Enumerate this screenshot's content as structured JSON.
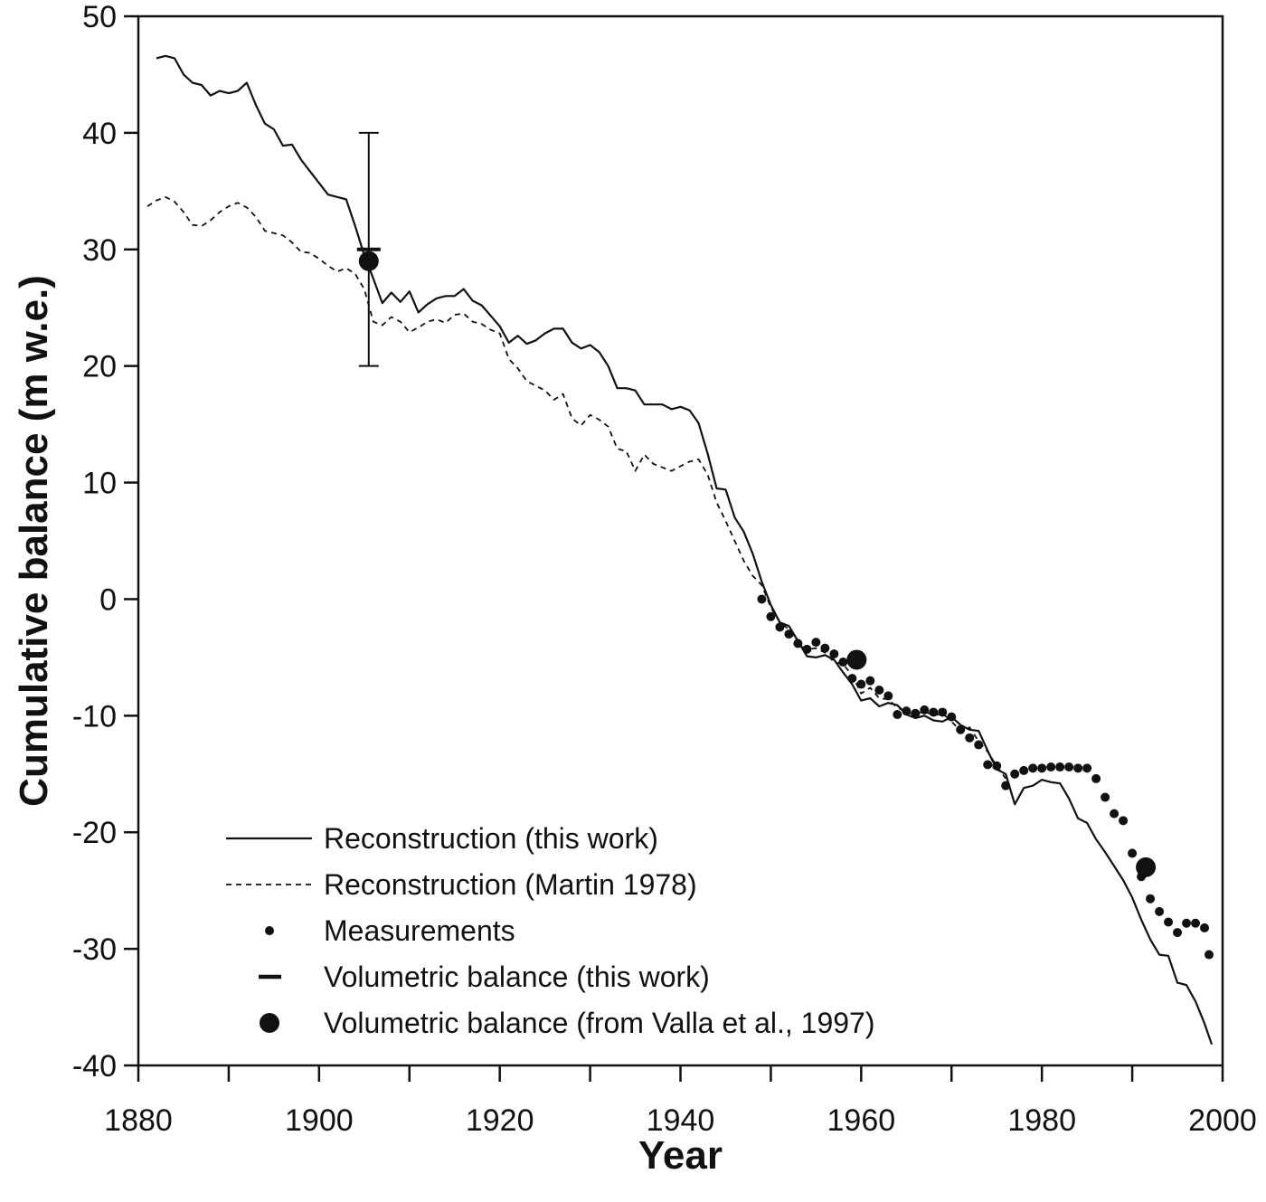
{
  "chart_data": {
    "type": "line",
    "title": "",
    "xlabel": "Year",
    "ylabel": "Cumulative balance (m w.e.)",
    "xlim": [
      1880,
      2000
    ],
    "ylim": [
      -40,
      50
    ],
    "x_ticks": [
      1880,
      1900,
      1920,
      1940,
      1960,
      1980,
      2000
    ],
    "y_ticks": [
      -40,
      -30,
      -20,
      -10,
      0,
      10,
      20,
      30,
      40,
      50
    ],
    "grid": false,
    "legend_position": "bottom-left",
    "legend": [
      {
        "label": "Reconstruction (this work)",
        "symbol": "solid-line"
      },
      {
        "label": "Reconstruction (Martin 1978)",
        "symbol": "dashed-line"
      },
      {
        "label": "Measurements",
        "symbol": "small-dot"
      },
      {
        "label": "Volumetric balance (this work)",
        "symbol": "dash-marker"
      },
      {
        "label": "Volumetric balance (from Valla et al., 1997)",
        "symbol": "large-dot"
      }
    ],
    "series": [
      {
        "name": "Reconstruction (this work)",
        "style": "solid",
        "x": [
          1882,
          1883,
          1884,
          1885,
          1886,
          1887,
          1888,
          1889,
          1890,
          1891,
          1892,
          1893,
          1894,
          1895,
          1896,
          1897,
          1898,
          1899,
          1900,
          1901,
          1902,
          1903,
          1904,
          1905,
          1906,
          1907,
          1908,
          1909,
          1910,
          1911,
          1912,
          1913,
          1914,
          1915,
          1916,
          1917,
          1918,
          1919,
          1920,
          1921,
          1922,
          1923,
          1924,
          1925,
          1926,
          1927,
          1928,
          1929,
          1930,
          1931,
          1932,
          1933,
          1934,
          1935,
          1936,
          1937,
          1938,
          1939,
          1940,
          1941,
          1942,
          1943,
          1944,
          1945,
          1946,
          1947,
          1948,
          1949,
          1950,
          1951,
          1952,
          1953,
          1954,
          1955,
          1956,
          1957,
          1958,
          1959,
          1960,
          1961,
          1962,
          1963,
          1964,
          1965,
          1966,
          1967,
          1968,
          1969,
          1970,
          1971,
          1972,
          1973,
          1974,
          1975,
          1976,
          1977,
          1978,
          1979,
          1980,
          1981,
          1982,
          1983,
          1984,
          1985,
          1986,
          1987,
          1988,
          1989,
          1990,
          1991,
          1992,
          1993,
          1994,
          1995,
          1996,
          1997,
          1998,
          1998.8
        ],
        "y": [
          46.4,
          46.6,
          46.4,
          45.0,
          44.3,
          44.1,
          43.2,
          43.6,
          43.4,
          43.6,
          44.3,
          42.4,
          40.8,
          40.3,
          38.9,
          39.0,
          37.7,
          36.7,
          35.7,
          34.7,
          34.5,
          34.3,
          32.0,
          29.5,
          27.5,
          25.4,
          26.3,
          25.5,
          26.4,
          24.6,
          25.3,
          25.8,
          26.0,
          26.0,
          26.6,
          25.6,
          25.2,
          24.3,
          23.4,
          22.0,
          22.6,
          21.9,
          22.2,
          22.8,
          23.2,
          23.2,
          22.0,
          21.5,
          21.8,
          21.2,
          20.0,
          18.1,
          18.1,
          17.9,
          16.7,
          16.7,
          16.7,
          16.3,
          16.5,
          16.2,
          15.1,
          12.5,
          9.5,
          9.4,
          7.0,
          5.8,
          3.9,
          1.5,
          -0.5,
          -2.0,
          -2.3,
          -3.6,
          -4.9,
          -5.0,
          -4.8,
          -5.2,
          -6.3,
          -7.3,
          -8.7,
          -8.5,
          -9.2,
          -8.9,
          -9.1,
          -9.9,
          -10.2,
          -10.0,
          -10.4,
          -10.5,
          -10.1,
          -10.8,
          -11.2,
          -11.3,
          -13.0,
          -14.6,
          -15.0,
          -17.6,
          -16.2,
          -16.0,
          -15.5,
          -15.7,
          -15.8,
          -17.1,
          -18.8,
          -19.2,
          -20.6,
          -21.7,
          -22.9,
          -24.1,
          -25.6,
          -27.5,
          -29.2,
          -30.5,
          -30.6,
          -32.9,
          -33.1,
          -34.5,
          -36.4,
          -38.2
        ]
      },
      {
        "name": "Reconstruction (Martin 1978)",
        "style": "dashed",
        "x": [
          1881,
          1882,
          1883,
          1884,
          1885,
          1886,
          1887,
          1888,
          1889,
          1890,
          1891,
          1892,
          1893,
          1894,
          1895,
          1896,
          1897,
          1898,
          1899,
          1900,
          1901,
          1902,
          1903,
          1904,
          1905,
          1906,
          1907,
          1908,
          1909,
          1910,
          1911,
          1912,
          1913,
          1914,
          1915,
          1916,
          1917,
          1918,
          1919,
          1920,
          1921,
          1922,
          1923,
          1924,
          1925,
          1926,
          1927,
          1928,
          1929,
          1930,
          1931,
          1932,
          1933,
          1934,
          1935,
          1936,
          1937,
          1938,
          1939,
          1940,
          1941,
          1942,
          1943,
          1944,
          1945,
          1946,
          1947,
          1948,
          1949,
          1950,
          1951,
          1952,
          1953,
          1954,
          1955,
          1956,
          1957,
          1958,
          1959,
          1960,
          1961,
          1962,
          1963,
          1964,
          1965,
          1966,
          1967,
          1968,
          1969,
          1970,
          1971,
          1972,
          1973,
          1974,
          1975,
          1976
        ],
        "y": [
          33.7,
          34.2,
          34.5,
          34.1,
          33.2,
          32.1,
          32.0,
          32.5,
          33.2,
          33.7,
          34.0,
          33.6,
          32.8,
          31.6,
          31.4,
          31.2,
          30.6,
          29.8,
          29.7,
          29.2,
          28.6,
          28.1,
          28.4,
          27.9,
          26.6,
          23.8,
          23.5,
          24.2,
          23.8,
          22.9,
          23.3,
          23.8,
          24.0,
          23.7,
          24.4,
          24.5,
          23.8,
          23.6,
          23.1,
          22.8,
          20.6,
          19.8,
          18.7,
          18.3,
          17.9,
          17.1,
          17.6,
          15.5,
          14.9,
          15.8,
          15.4,
          14.8,
          12.9,
          12.7,
          11.0,
          12.4,
          11.6,
          11.3,
          11.0,
          11.4,
          11.8,
          12.0,
          10.7,
          8.3,
          6.7,
          5.0,
          3.3,
          2.0,
          1.2,
          -0.7,
          -2.0,
          -2.6,
          -3.9,
          -4.3,
          -4.2,
          -4.6,
          -5.4,
          -5.6,
          -6.5,
          -8.1,
          -7.6,
          -8.5,
          -8.6,
          -9.3,
          -9.7,
          -9.9,
          -9.6,
          -10.0,
          -9.8,
          -10.5,
          -11.3,
          -11.0,
          -12.2,
          -13.1,
          -14.3,
          -15.4
        ]
      },
      {
        "name": "Measurements",
        "style": "small-dot",
        "x": [
          1949,
          1950,
          1951,
          1952,
          1953,
          1954,
          1955,
          1956,
          1957,
          1958,
          1959,
          1960,
          1961,
          1962,
          1963,
          1964,
          1965,
          1966,
          1967,
          1968,
          1969,
          1970,
          1971,
          1972,
          1973,
          1974,
          1975,
          1976,
          1977,
          1978,
          1979,
          1980,
          1981,
          1982,
          1983,
          1984,
          1985,
          1986,
          1987,
          1988,
          1989,
          1990,
          1991,
          1992,
          1993,
          1994,
          1995,
          1996,
          1997,
          1998
        ],
        "y": [
          0.0,
          -1.5,
          -2.4,
          -3.0,
          -3.8,
          -4.3,
          -3.7,
          -4.2,
          -4.7,
          -5.4,
          -6.8,
          -7.3,
          -7.0,
          -7.8,
          -8.3,
          -9.9,
          -9.6,
          -9.8,
          -9.5,
          -9.7,
          -9.7,
          -10.1,
          -11.2,
          -11.9,
          -12.5,
          -14.2,
          -14.3,
          -16.0,
          -15.0,
          -14.7,
          -14.5,
          -14.5,
          -14.4,
          -14.4,
          -14.4,
          -14.5,
          -14.5,
          -15.4,
          -17.0,
          -18.4,
          -19.0,
          -21.8,
          -23.8,
          -25.7,
          -26.8,
          -27.7,
          -28.6,
          -27.8,
          -27.8,
          -28.2
        ]
      },
      {
        "name": "Volumetric balance (this work)",
        "style": "dash-marker",
        "x": [
          1905.5
        ],
        "y": [
          30.0
        ],
        "error": [
          10.0
        ]
      },
      {
        "name": "Volumetric balance (from Valla et al., 1997)",
        "style": "large-dot",
        "x": [
          1905.5,
          1959.5,
          1991.5
        ],
        "y": [
          29.0,
          -5.2,
          -23.0
        ]
      }
    ],
    "extra_points": [
      {
        "series": "Measurements",
        "x": 1998.5,
        "y": -30.5
      }
    ]
  }
}
